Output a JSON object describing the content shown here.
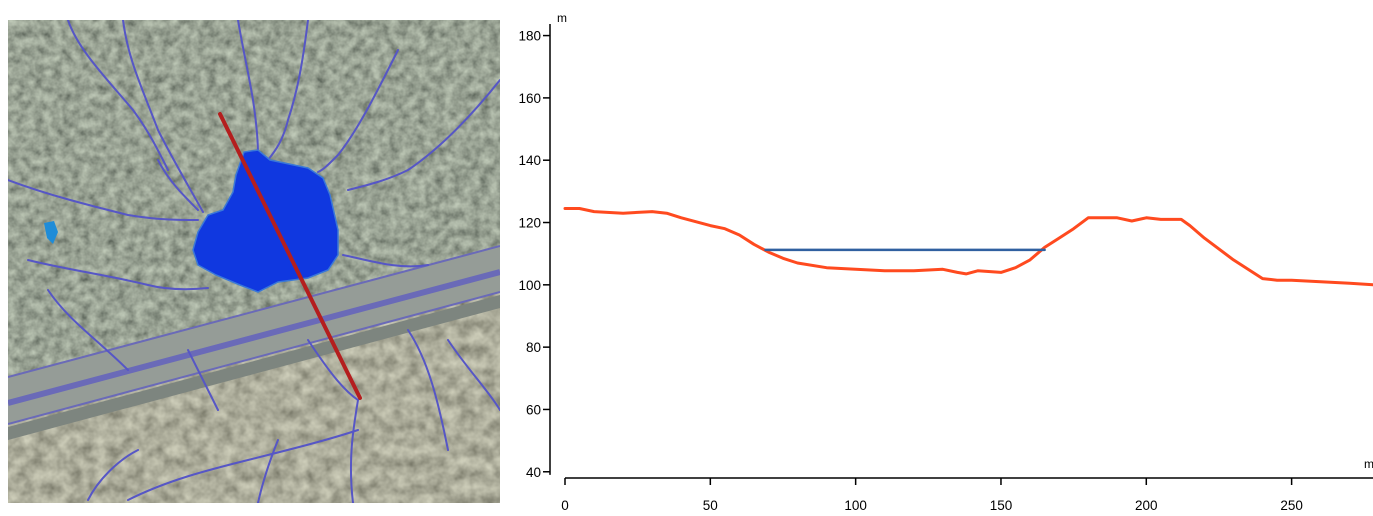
{
  "chart_data": {
    "type": "line",
    "title": "",
    "xlabel": "m",
    "ylabel": "m",
    "xlim": [
      0,
      278
    ],
    "ylim": [
      38,
      185
    ],
    "x_ticks": [
      0,
      50,
      100,
      150,
      200,
      250
    ],
    "y_ticks": [
      40,
      60,
      80,
      100,
      120,
      140,
      160,
      180
    ],
    "grid": false,
    "series": [
      {
        "role": "terrain",
        "color": "#ff4a1f",
        "x": [
          0,
          5,
          10,
          20,
          30,
          35,
          40,
          50,
          55,
          60,
          65,
          70,
          75,
          80,
          90,
          100,
          110,
          120,
          130,
          135,
          138,
          142,
          150,
          155,
          160,
          165,
          170,
          175,
          180,
          190,
          195,
          200,
          205,
          212,
          215,
          220,
          230,
          240,
          245,
          250,
          260,
          270,
          278
        ],
        "y": [
          124.5,
          124.5,
          123.5,
          123,
          123.5,
          123,
          121.5,
          119,
          118,
          116,
          113,
          110.5,
          108.5,
          107,
          105.5,
          105,
          104.5,
          104.5,
          105,
          104,
          103.5,
          104.5,
          104,
          105.5,
          108,
          112,
          115,
          118,
          121.5,
          121.5,
          120.5,
          121.5,
          121,
          121,
          119,
          115,
          108,
          102,
          101.5,
          101.5,
          101,
          100.5,
          100
        ]
      },
      {
        "role": "water-level",
        "color": "#3060a0",
        "x": [
          69,
          165
        ],
        "y": [
          111.2,
          111.2
        ]
      }
    ]
  },
  "map": {
    "colors": {
      "forest": "#2e3a2a",
      "road": "#8f9691",
      "lane_divider": "#6060b0",
      "pond": "#1038e0",
      "streams": "#5050c0",
      "profile_line": "#b41e1e"
    }
  }
}
